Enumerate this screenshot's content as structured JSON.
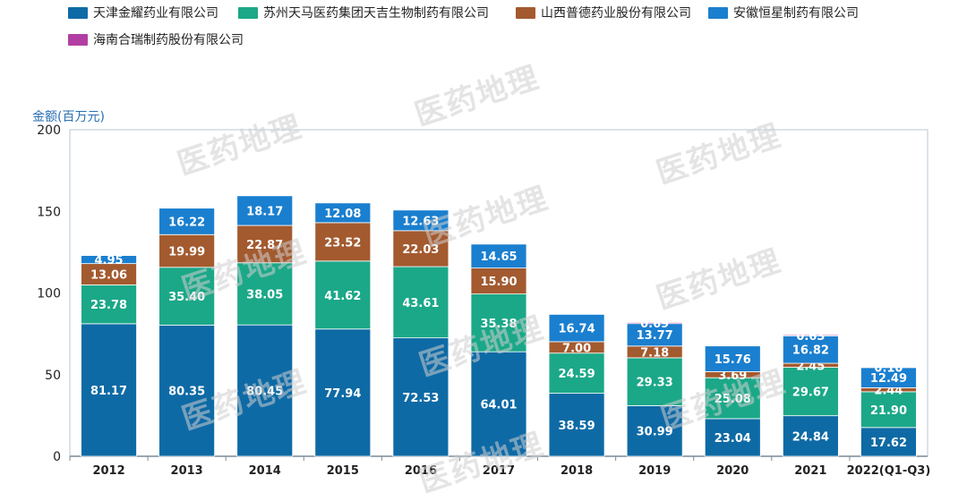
{
  "watermark": "医药地理",
  "chart_data": {
    "type": "bar",
    "stacked": true,
    "ylabel": "金额(百万元)",
    "ylim": [
      0,
      200
    ],
    "yticks": [
      0,
      50,
      100,
      150,
      200
    ],
    "categories": [
      "2012",
      "2013",
      "2014",
      "2015",
      "2016",
      "2017",
      "2018",
      "2019",
      "2020",
      "2021",
      "2022(Q1-Q3)"
    ],
    "legend_position": "top",
    "series": [
      {
        "name": "天津金耀药业有限公司",
        "color": "#0e6aa5",
        "values": [
          81.17,
          80.35,
          80.45,
          77.94,
          72.53,
          64.01,
          38.59,
          30.99,
          23.04,
          24.84,
          17.62
        ],
        "labels": [
          "81.17",
          "80.35",
          "80.45",
          "77.94",
          "72.53",
          "64.01",
          "38.59",
          "30.99",
          "23.04",
          "24.84",
          "17.62"
        ]
      },
      {
        "name": "苏州天马医药集团天吉生物制药有限公司",
        "color": "#1ba888",
        "values": [
          23.78,
          35.4,
          38.05,
          41.62,
          43.61,
          35.38,
          24.59,
          29.33,
          25.08,
          29.67,
          21.9
        ],
        "labels": [
          "23.78",
          "35.40",
          "38.05",
          "41.62",
          "43.61",
          "35.38",
          "24.59",
          "29.33",
          "25.08",
          "29.67",
          "21.90"
        ]
      },
      {
        "name": "山西普德药业股份有限公司",
        "color": "#a35a2f",
        "values": [
          13.06,
          19.99,
          22.87,
          23.52,
          22.03,
          15.9,
          7.0,
          7.18,
          3.69,
          2.45,
          2.44
        ],
        "labels": [
          "13.06",
          "19.99",
          "22.87",
          "23.52",
          "22.03",
          "15.90",
          "7.00",
          "7.18",
          "3.69",
          "2.45",
          "2.44"
        ]
      },
      {
        "name": "安徽恒星制药有限公司",
        "color": "#1a7fcf",
        "values": [
          4.95,
          16.22,
          18.17,
          12.08,
          12.63,
          14.65,
          16.74,
          13.77,
          15.76,
          16.82,
          12.49
        ],
        "labels": [
          "4.95",
          "16.22",
          "18.17",
          "12.08",
          "12.63",
          "14.65",
          "16.74",
          "13.77",
          "15.76",
          "16.82",
          "12.49"
        ]
      },
      {
        "name": "海南合瑞制药股份有限公司",
        "color": "#b23ea3",
        "values": [
          0,
          0,
          0,
          0,
          0,
          0,
          0,
          0.69,
          0,
          0.63,
          0.1
        ],
        "labels": [
          "",
          "",
          "",
          "",
          "",
          "",
          "",
          "0.69",
          "",
          "0.63",
          "0.10"
        ]
      }
    ]
  }
}
